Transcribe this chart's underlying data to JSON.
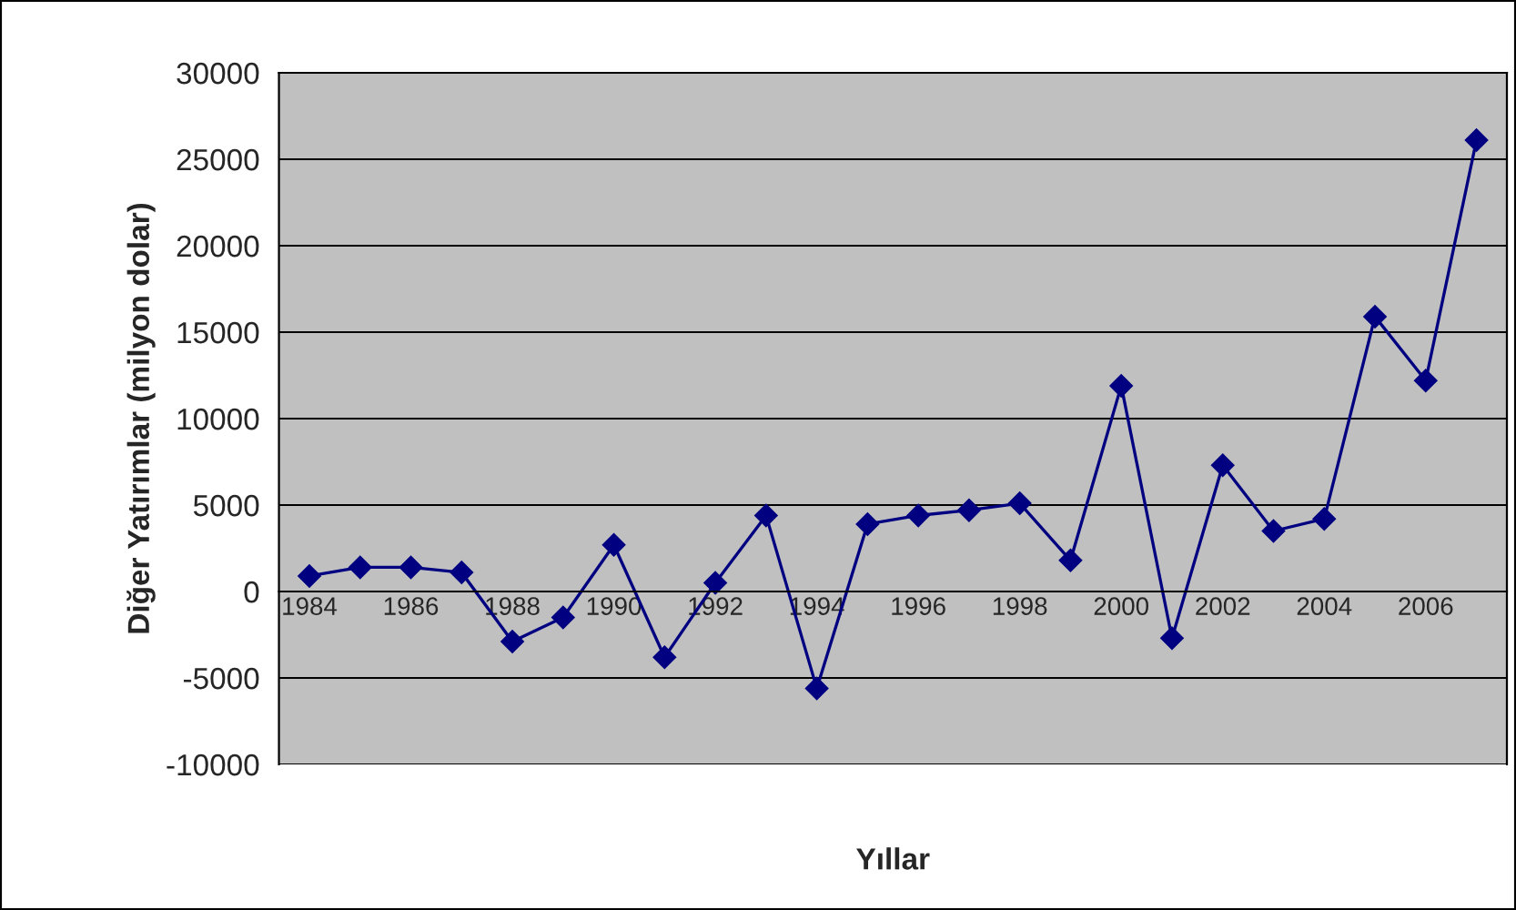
{
  "chart_data": {
    "type": "line",
    "xlabel": "Yıllar",
    "ylabel": "Diğer Yatırımlar (milyon dolar)",
    "categories": [
      "1984",
      null,
      "1986",
      null,
      "1988",
      null,
      "1990",
      null,
      "1992",
      null,
      "1994",
      null,
      "1996",
      null,
      "1998",
      null,
      "2000",
      null,
      "2002",
      null,
      "2004",
      null,
      "2006",
      null
    ],
    "series": [
      {
        "color": "#000080",
        "values": [
          900,
          1400,
          1400,
          1100,
          -2900,
          -1500,
          2700,
          -3800,
          500,
          4400,
          -5600,
          3900,
          4400,
          4700,
          5100,
          1800,
          11900,
          -2700,
          7300,
          3500,
          4200,
          15900,
          12200,
          26100
        ]
      }
    ],
    "ylim": [
      -10000,
      30000
    ],
    "yticks": [
      -10000,
      -5000,
      0,
      5000,
      10000,
      15000,
      20000,
      25000,
      30000
    ],
    "grid": "y",
    "legend": false,
    "marker": "diamond",
    "line_style": "solid"
  }
}
